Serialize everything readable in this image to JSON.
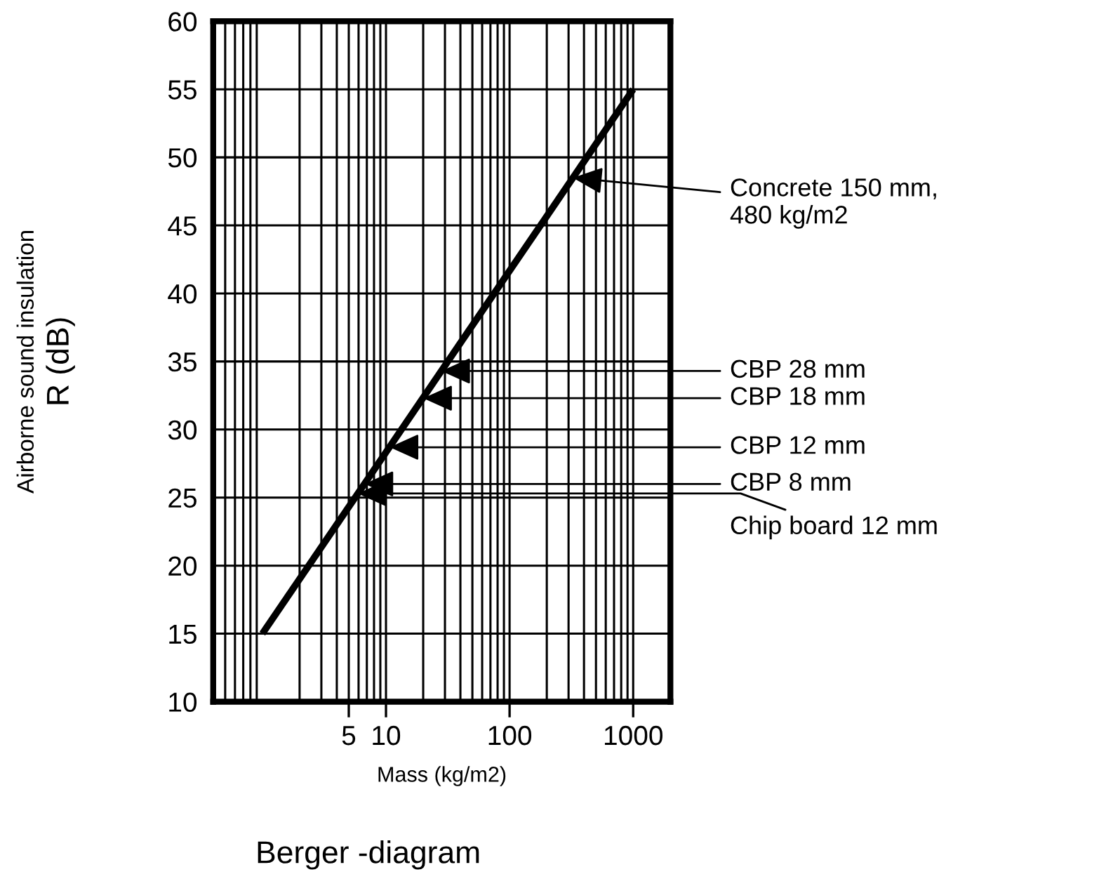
{
  "chart_data": {
    "type": "line",
    "title": "Berger -diagram",
    "xlabel": "Mass (kg/m2)",
    "ylabel": "Airborne sound insulation\nR (dB)",
    "series": [
      {
        "x": [
          1,
          1000
        ],
        "values": [
          15,
          55
        ],
        "color": "#000000"
      }
    ],
    "log": "x",
    "xlim": [
      0.4,
      2000
    ],
    "xticks": [
      5,
      10,
      100,
      1000
    ],
    "ylim": [
      10,
      60
    ],
    "yticks": [
      10,
      15,
      20,
      25,
      30,
      35,
      40,
      45,
      50,
      55,
      60
    ],
    "grid": true,
    "marker": "none",
    "line_style": "solid",
    "annotations": [
      {
        "text": "Concrete 150 mm,\n480 kg/m2",
        "x": 325,
        "y": 48.5
      },
      {
        "text": "CBP 28 mm",
        "x": 28,
        "y": 34.3
      },
      {
        "text": "CBP 18 mm",
        "x": 20,
        "y": 32.3
      },
      {
        "text": "CBP 12 mm",
        "x": 10.7,
        "y": 28.7
      },
      {
        "text": "CBP 8 mm",
        "x": 6.7,
        "y": 26.0
      },
      {
        "text": "Chip board 12 mm",
        "x": 5.9,
        "y": 25.3
      }
    ]
  }
}
